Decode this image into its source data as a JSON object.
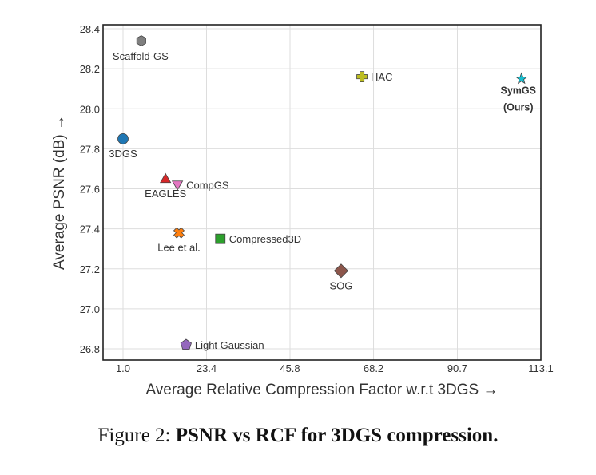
{
  "chart_data": {
    "type": "scatter",
    "title": "",
    "xlabel": "Average Relative Compression Factor w.r.t 3DGS →",
    "ylabel": "Average PSNR (dB) →",
    "xlim": [
      1.0,
      113.1
    ],
    "ylim": [
      26.8,
      28.4
    ],
    "xticks": [
      1.0,
      23.4,
      45.8,
      68.2,
      90.7,
      113.1
    ],
    "xtick_labels": [
      "1.0",
      "23.4",
      "45.8",
      "68.2",
      "90.7",
      "113.1"
    ],
    "yticks": [
      26.8,
      27.0,
      27.2,
      27.4,
      27.6,
      27.8,
      28.0,
      28.2,
      28.4
    ],
    "ytick_labels": [
      "26.8",
      "27.0",
      "27.2",
      "27.4",
      "27.6",
      "27.8",
      "28.0",
      "28.2",
      "28.4"
    ],
    "grid": true,
    "legend": "none",
    "points": [
      {
        "name": "Scaffold-GS",
        "x": 5.9,
        "y": 28.34,
        "marker": "hexagon",
        "color": "#7f7f7f",
        "label_pos": "below",
        "bold": false
      },
      {
        "name": "3DGS",
        "x": 1.0,
        "y": 27.85,
        "marker": "circle",
        "color": "#1f77b4",
        "label_pos": "below",
        "bold": false
      },
      {
        "name": "EAGLES",
        "x": 12.4,
        "y": 27.65,
        "marker": "triangle-up",
        "color": "#d62728",
        "label_pos": "below",
        "bold": false
      },
      {
        "name": "CompGS",
        "x": 15.6,
        "y": 27.62,
        "marker": "triangle-down",
        "color": "#e377c2",
        "label_pos": "right",
        "bold": false
      },
      {
        "name": "Lee et al.",
        "x": 16.0,
        "y": 27.38,
        "marker": "x-filled",
        "color": "#ff7f0e",
        "label_pos": "below",
        "bold": false
      },
      {
        "name": "Compressed3D",
        "x": 27.1,
        "y": 27.35,
        "marker": "square",
        "color": "#2ca02c",
        "label_pos": "right",
        "bold": false
      },
      {
        "name": "Light Gaussian",
        "x": 17.9,
        "y": 26.82,
        "marker": "pentagon",
        "color": "#9467bd",
        "label_pos": "right",
        "bold": false
      },
      {
        "name": "SOG",
        "x": 59.5,
        "y": 27.19,
        "marker": "diamond",
        "color": "#8c564b",
        "label_pos": "below",
        "bold": false
      },
      {
        "name": "HAC",
        "x": 65.1,
        "y": 28.16,
        "marker": "plus-filled",
        "color": "#bcbd22",
        "label_pos": "right",
        "bold": false
      },
      {
        "name": "SymGS",
        "sublabel": "(Ours)",
        "x": 107.9,
        "y": 28.15,
        "marker": "star",
        "color": "#17becf",
        "label_pos": "below",
        "bold": true
      }
    ]
  },
  "caption": {
    "prefix": "Figure 2: ",
    "bold": "PSNR vs RCF for 3DGS compression."
  }
}
